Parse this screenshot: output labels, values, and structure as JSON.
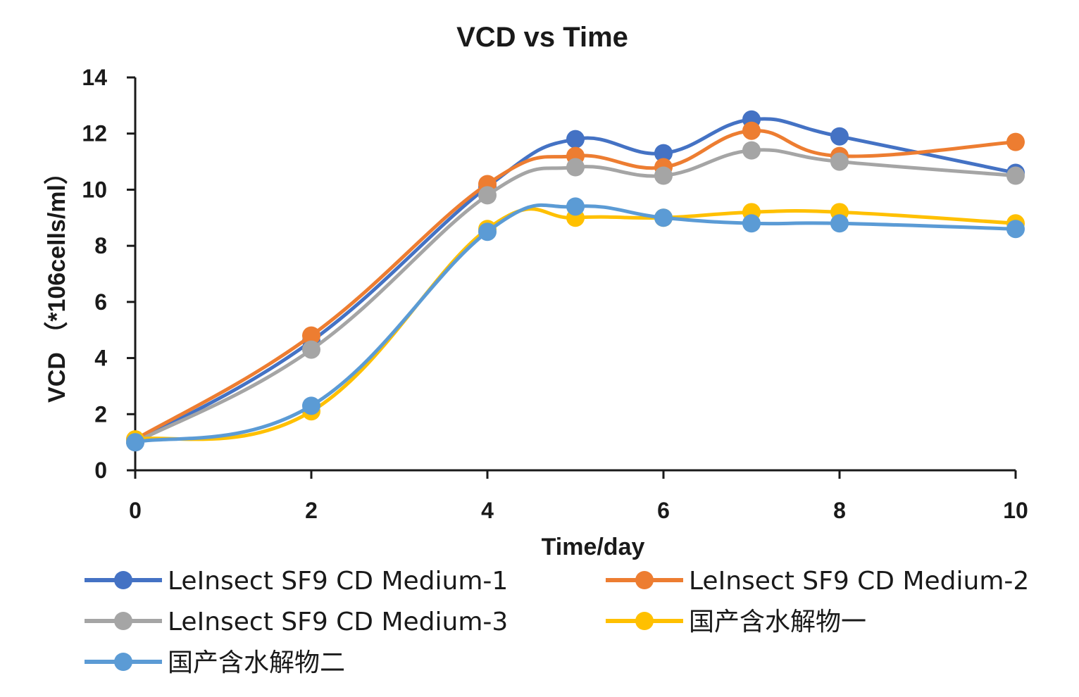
{
  "chart_data": {
    "type": "line",
    "title": "VCD vs Time",
    "xlabel": "Time/day",
    "ylabel": "VCD （*106cells/ml）",
    "xlim": [
      0,
      10
    ],
    "ylim": [
      0,
      14
    ],
    "x_ticks": [
      0,
      2,
      4,
      6,
      8,
      10
    ],
    "y_ticks": [
      0,
      2,
      4,
      6,
      8,
      10,
      12,
      14
    ],
    "x_tick_labels": [
      "0",
      "2",
      "4",
      "6",
      "8",
      "10"
    ],
    "y_tick_labels": [
      "0",
      "2",
      "4",
      "6",
      "8",
      "10",
      "12",
      "14"
    ],
    "grid": false,
    "legend_position": "bottom",
    "x": [
      0,
      2,
      4,
      5,
      6,
      7,
      8,
      10
    ],
    "series": [
      {
        "name": "LeInsect SF9 CD Medium-1",
        "color": "#4472C4",
        "values": [
          1.0,
          4.6,
          10.1,
          11.8,
          11.3,
          12.5,
          11.9,
          10.6
        ]
      },
      {
        "name": "LeInsect SF9 CD Medium-2",
        "color": "#ED7D31",
        "values": [
          1.1,
          4.8,
          10.2,
          11.2,
          10.8,
          12.1,
          11.2,
          11.7
        ]
      },
      {
        "name": "LeInsect SF9 CD Medium-3",
        "color": "#A5A5A5",
        "values": [
          1.0,
          4.3,
          9.8,
          10.8,
          10.5,
          11.4,
          11.0,
          10.5
        ]
      },
      {
        "name": "国产含水解物一",
        "color": "#FFC000",
        "values": [
          1.1,
          2.1,
          8.6,
          9.0,
          9.0,
          9.2,
          9.2,
          8.8
        ]
      },
      {
        "name": "国产含水解物二",
        "color": "#5B9BD5",
        "values": [
          1.0,
          2.3,
          8.5,
          9.4,
          9.0,
          8.8,
          8.8,
          8.6
        ]
      }
    ]
  }
}
